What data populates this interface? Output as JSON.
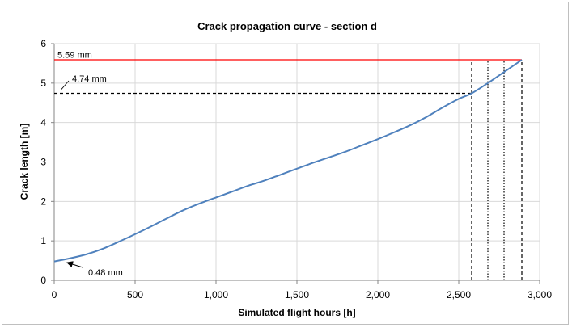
{
  "chart_data": {
    "type": "line",
    "title": "Crack propagation curve - section d",
    "xlabel": "Simulated flight hours [h]",
    "ylabel": "Crack length [m]",
    "xlim": [
      0,
      3000
    ],
    "ylim": [
      0,
      6
    ],
    "x_ticks": [
      0,
      500,
      1000,
      1500,
      2000,
      2500,
      3000
    ],
    "x_tick_labels": [
      "0",
      "500",
      "1,000",
      "1,500",
      "2,000",
      "2,500",
      "3,000"
    ],
    "y_ticks": [
      0,
      1,
      2,
      3,
      4,
      5,
      6
    ],
    "y_tick_labels": [
      "0",
      "1",
      "2",
      "3",
      "4",
      "5",
      "6"
    ],
    "grid": "horizontal and vertical major gridlines",
    "legend": "none",
    "series": [
      {
        "color": "#4f81bd",
        "x": [
          0,
          100,
          200,
          300,
          400,
          500,
          600,
          700,
          800,
          900,
          1000,
          1100,
          1200,
          1300,
          1400,
          1500,
          1600,
          1700,
          1800,
          1900,
          2000,
          2100,
          2200,
          2300,
          2400,
          2500,
          2580,
          2680,
          2780,
          2890
        ],
        "y": [
          0.48,
          0.56,
          0.66,
          0.8,
          0.98,
          1.17,
          1.37,
          1.58,
          1.78,
          1.95,
          2.1,
          2.25,
          2.4,
          2.53,
          2.68,
          2.83,
          2.98,
          3.12,
          3.26,
          3.42,
          3.58,
          3.75,
          3.93,
          4.14,
          4.38,
          4.6,
          4.74,
          5.0,
          5.28,
          5.59
        ]
      }
    ],
    "reference_lines": [
      {
        "kind": "horizontal",
        "y": 5.59,
        "x_start": 0,
        "x_end": 2890,
        "color": "#ff0000",
        "style": "solid"
      },
      {
        "kind": "horizontal",
        "y": 4.74,
        "x_start": 0,
        "x_end": 2580,
        "color": "#000000",
        "style": "dashed"
      },
      {
        "kind": "vertical",
        "x": 2580,
        "y_end": 5.59,
        "color": "#000000",
        "style": "dashed"
      },
      {
        "kind": "vertical",
        "x": 2680,
        "y_end": 5.59,
        "color": "#000000",
        "style": "dotted"
      },
      {
        "kind": "vertical",
        "x": 2780,
        "y_end": 5.59,
        "color": "#000000",
        "style": "dotted"
      },
      {
        "kind": "vertical",
        "x": 2890,
        "y_end": 5.59,
        "color": "#000000",
        "style": "dashed"
      }
    ],
    "annotations": [
      {
        "text": "5.59 mm",
        "x": 20,
        "y": 5.72
      },
      {
        "text": "4.74 mm",
        "x": 110,
        "y": 5.12,
        "leader_to": {
          "x": 40,
          "y": 4.76
        }
      },
      {
        "text": "0.48 mm",
        "x": 210,
        "y": 0.2,
        "arrow_to": {
          "x": 80,
          "y": 0.45
        }
      }
    ],
    "colors": {
      "gridline": "#d9d9d9",
      "axis": "#868686",
      "frame": "#bfbfbf"
    }
  }
}
